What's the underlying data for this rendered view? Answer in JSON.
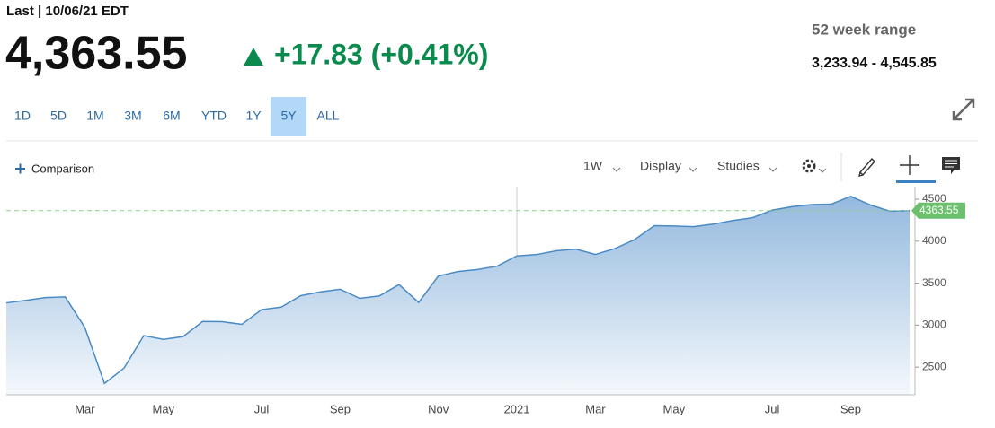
{
  "header": {
    "last_label": "Last | 10/06/21 EDT",
    "price": "4,363.55",
    "change": "+17.83 (+0.41%)",
    "range_label": "52 week range",
    "range": "3,233.94 - 4,545.85"
  },
  "periods": [
    "1D",
    "5D",
    "1M",
    "3M",
    "6M",
    "YTD",
    "1Y",
    "5Y",
    "ALL"
  ],
  "active_period_index": 7,
  "toolbar": {
    "comparison": "Comparison",
    "interval": "1W",
    "display": "Display",
    "studies": "Studies"
  },
  "chart_data": {
    "type": "area",
    "color": "#4a8ac4",
    "categories": [
      null,
      null,
      null,
      null,
      "Mar",
      null,
      null,
      null,
      "May",
      null,
      null,
      null,
      null,
      "Jul",
      null,
      null,
      null,
      "Sep",
      null,
      null,
      null,
      null,
      "Nov",
      null,
      null,
      null,
      "2021",
      null,
      null,
      null,
      "Mar",
      null,
      null,
      null,
      "May",
      null,
      null,
      null,
      null,
      "Jul",
      null,
      null,
      null,
      "Sep",
      null,
      null,
      null
    ],
    "values": [
      3265,
      3295,
      3328,
      3337,
      2972,
      2305,
      2489,
      2875,
      2830,
      2863,
      3044,
      3041,
      3009,
      3185,
      3215,
      3351,
      3397,
      3427,
      3319,
      3348,
      3483,
      3270,
      3585,
      3638,
      3663,
      3703,
      3824,
      3841,
      3886,
      3906,
      3842,
      3913,
      4019,
      4185,
      4181,
      4173,
      4204,
      4247,
      4280,
      4369,
      4411,
      4436,
      4441,
      4535,
      4432,
      4357,
      4363.55
    ],
    "ylim": [
      2170,
      4650
    ],
    "yticks": [
      2500,
      3000,
      3500,
      4000,
      4500
    ],
    "last_value": 4363.55
  }
}
